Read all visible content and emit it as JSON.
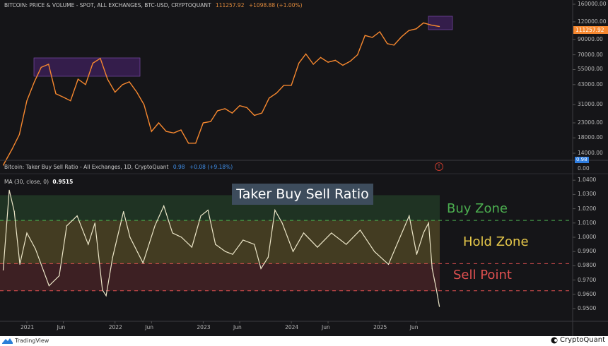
{
  "price_header": {
    "title": "BITCOIN: PRICE & VOLUME - SPOT, ALL EXCHANGES, BTC-USD, CRYPTOQUANT",
    "last": "111257.92",
    "change": "+1098.88 (+1.00%)"
  },
  "ratio_header": {
    "title": "Bitcoin: Taker Buy Sell Ratio - All Exchanges, 1D, CryptoQuant",
    "last": "0.98",
    "change": "+0.08 (+9.18%)"
  },
  "ma_header": {
    "label": "MA (30, close, 0)",
    "value": "0.9515"
  },
  "price_axis": {
    "ticks": [
      "160000.00",
      "120000.00",
      "90000.00",
      "70000.00",
      "55000.00",
      "43000.00",
      "31000.00",
      "23000.00",
      "18000.00",
      "14000.00"
    ],
    "last_tag": "111257.92"
  },
  "ratio_axis": {
    "ticks": [
      "1.0400",
      "1.0300",
      "1.0200",
      "1.0100",
      "1.0000",
      "0.9900",
      "0.9800",
      "0.9700",
      "0.9600",
      "0.9500"
    ],
    "tag": "0.98",
    "zero": "0.00"
  },
  "time_axis": {
    "ticks": [
      "2021",
      "Jun",
      "2022",
      "Jun",
      "2023",
      "Jun",
      "2024",
      "Jun",
      "2025",
      "Jun"
    ]
  },
  "annotations": {
    "title": "Taker Buy Sell Ratio",
    "buy_zone": "Buy Zone",
    "hold_zone": "Hold Zone",
    "sell_point": "Sell Point"
  },
  "footer": {
    "left": "TradingView",
    "right": "CryptoQuant"
  },
  "colors": {
    "price": "#f7882f",
    "ratio": "#ece6c8",
    "buy": "#4caf50",
    "hold": "#e6c84a",
    "sell": "#e05050",
    "tag_blue": "#2e7de0"
  },
  "chart_data": [
    {
      "type": "line",
      "title": "BITCOIN: PRICE & VOLUME - SPOT, ALL EXCHANGES, BTC-USD, CRYPTOQUANT",
      "yscale": "log",
      "ylim": [
        13000,
        165000
      ],
      "grid": false,
      "x": [
        "2020-09-25",
        "2020-11-01",
        "2020-12-01",
        "2021-01-01",
        "2021-02-01",
        "2021-03-01",
        "2021-04-01",
        "2021-05-01",
        "2021-06-01",
        "2021-07-01",
        "2021-08-01",
        "2021-09-01",
        "2021-10-01",
        "2021-11-01",
        "2021-12-01",
        "2022-01-01",
        "2022-02-01",
        "2022-03-01",
        "2022-04-01",
        "2022-05-01",
        "2022-06-01",
        "2022-07-01",
        "2022-08-01",
        "2022-09-01",
        "2022-10-01",
        "2022-11-01",
        "2022-12-01",
        "2023-01-01",
        "2023-02-01",
        "2023-03-01",
        "2023-04-01",
        "2023-05-01",
        "2023-06-01",
        "2023-07-01",
        "2023-08-01",
        "2023-09-01",
        "2023-10-01",
        "2023-11-01",
        "2023-12-01",
        "2024-01-01",
        "2024-02-01",
        "2024-03-01",
        "2024-04-01",
        "2024-05-01",
        "2024-06-01",
        "2024-07-01",
        "2024-08-01",
        "2024-09-01",
        "2024-10-01",
        "2024-11-01",
        "2024-12-01",
        "2025-01-01",
        "2025-02-01",
        "2025-03-01",
        "2025-04-01",
        "2025-05-01",
        "2025-06-01",
        "2025-07-01",
        "2025-08-01",
        "2025-09-05"
      ],
      "values": [
        11500,
        15000,
        19000,
        33000,
        45000,
        57000,
        60000,
        37000,
        35000,
        33000,
        47000,
        43000,
        61000,
        66000,
        47000,
        38000,
        43000,
        45000,
        38000,
        31000,
        20000,
        23000,
        20000,
        19500,
        20500,
        16500,
        16500,
        23000,
        23500,
        28000,
        29000,
        27000,
        30500,
        29500,
        26000,
        27000,
        34500,
        37500,
        42500,
        42500,
        61000,
        71000,
        60000,
        67000,
        62000,
        64000,
        59000,
        63000,
        70000,
        96000,
        93000,
        102000,
        84000,
        82000,
        94000,
        104000,
        107000,
        118000,
        114000,
        111257.92
      ]
    },
    {
      "type": "line",
      "title": "Taker Buy Sell Ratio",
      "ylim": [
        0.945,
        1.045
      ],
      "grid": false,
      "zones": [
        {
          "label": "Buy Zone",
          "from": 1.0118,
          "to": 1.0295
        },
        {
          "label": "Hold Zone",
          "from": 0.9815,
          "to": 1.0118
        },
        {
          "label": "Sell Point",
          "from": 0.9625,
          "to": 0.9815
        }
      ],
      "x": [
        "2020-09-25",
        "2020-10-20",
        "2020-11-10",
        "2020-12-03",
        "2021-01-01",
        "2021-02-05",
        "2021-04-03",
        "2021-05-15",
        "2021-06-15",
        "2021-07-28",
        "2021-09-12",
        "2021-10-10",
        "2021-11-10",
        "2021-11-25",
        "2021-12-22",
        "2022-02-05",
        "2022-03-04",
        "2022-04-27",
        "2022-06-15",
        "2022-07-22",
        "2022-08-27",
        "2022-10-03",
        "2022-11-15",
        "2022-12-22",
        "2023-01-21",
        "2023-02-21",
        "2023-04-03",
        "2023-05-03",
        "2023-06-15",
        "2023-08-01",
        "2023-08-28",
        "2023-09-27",
        "2023-10-25",
        "2023-11-24",
        "2024-01-08",
        "2024-02-21",
        "2024-04-18",
        "2024-06-15",
        "2024-08-15",
        "2024-10-12",
        "2024-12-10",
        "2025-02-06",
        "2025-03-21",
        "2025-05-03",
        "2025-06-03",
        "2025-07-01",
        "2025-07-22",
        "2025-08-06",
        "2025-08-24",
        "2025-09-05"
      ],
      "values": [
        0.977,
        1.033,
        1.018,
        0.981,
        1.003,
        0.992,
        0.966,
        0.973,
        1.008,
        1.015,
        0.995,
        1.01,
        0.963,
        0.959,
        0.986,
        1.018,
        1.0,
        0.982,
        1.008,
        1.022,
        1.003,
        1.0,
        0.993,
        1.015,
        1.019,
        0.995,
        0.99,
        0.988,
        0.998,
        0.995,
        0.978,
        0.986,
        1.019,
        1.01,
        0.99,
        1.003,
        0.993,
        1.003,
        0.995,
        1.005,
        0.99,
        0.981,
        0.998,
        1.015,
        0.988,
        1.003,
        1.01,
        0.978,
        0.963,
        0.9515
      ]
    }
  ]
}
